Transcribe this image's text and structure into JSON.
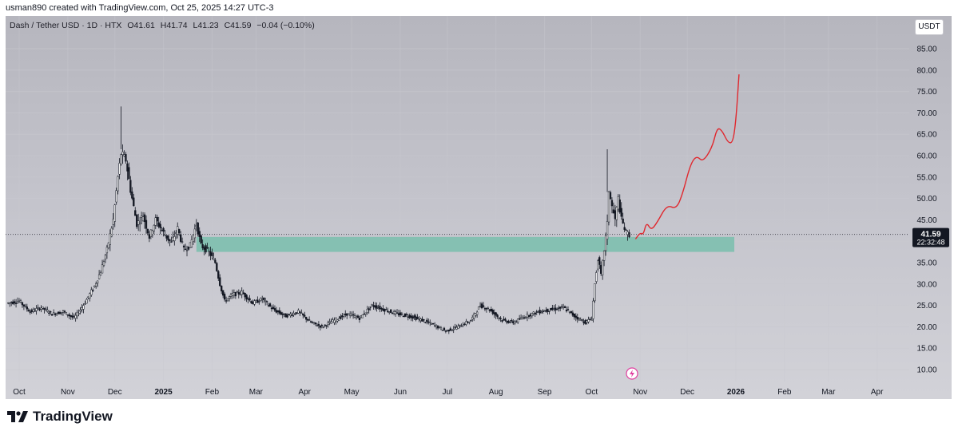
{
  "header": {
    "credit": "usman890 created with TradingView.com, Oct 25, 2025 14:27 UTC-3"
  },
  "symbol_bar": {
    "pair": "Dash / Tether USD · 1D · HTX",
    "open": "O41.61",
    "high": "H41.74",
    "low": "L41.23",
    "close": "C41.59",
    "change": "−0.04 (−0.10%)"
  },
  "currency_button": "USDT",
  "footer": {
    "brand": "TradingView"
  },
  "colors": {
    "zone": "#7fbfb0",
    "projection": "#e0282e",
    "candle": "#131722",
    "price_tag": "#131722"
  },
  "chart_data": {
    "type": "candlestick",
    "title": "Dash / Tether USD · 1D · HTX",
    "xlabel": "",
    "ylabel": "",
    "ylim": [
      5,
      90
    ],
    "grid": true,
    "y_ticks": [
      "10.00",
      "15.00",
      "20.00",
      "25.00",
      "30.00",
      "35.00",
      "40.00",
      "45.00",
      "50.00",
      "55.00",
      "60.00",
      "65.00",
      "70.00",
      "75.00",
      "80.00",
      "85.00"
    ],
    "x_ticks": [
      {
        "label": "Oct",
        "date": "2024-10-01"
      },
      {
        "label": "Nov",
        "date": "2024-11-01"
      },
      {
        "label": "Dec",
        "date": "2024-12-01"
      },
      {
        "label": "2025",
        "date": "2025-01-01",
        "bold": true
      },
      {
        "label": "Feb",
        "date": "2025-02-01"
      },
      {
        "label": "Mar",
        "date": "2025-03-01"
      },
      {
        "label": "Apr",
        "date": "2025-04-01"
      },
      {
        "label": "May",
        "date": "2025-05-01"
      },
      {
        "label": "Jun",
        "date": "2025-06-01"
      },
      {
        "label": "Jul",
        "date": "2025-07-01"
      },
      {
        "label": "Aug",
        "date": "2025-08-01"
      },
      {
        "label": "Sep",
        "date": "2025-09-01"
      },
      {
        "label": "Oct",
        "date": "2025-10-01"
      },
      {
        "label": "Nov",
        "date": "2025-11-01"
      },
      {
        "label": "Dec",
        "date": "2025-12-01"
      },
      {
        "label": "2026",
        "date": "2026-01-01",
        "bold": true
      },
      {
        "label": "Feb",
        "date": "2026-02-01"
      },
      {
        "label": "Mar",
        "date": "2026-03-01"
      },
      {
        "label": "Apr",
        "date": "2026-04-01"
      }
    ],
    "price_path": [
      [
        "2024-09-23",
        25.5
      ],
      [
        "2024-10-01",
        26.0
      ],
      [
        "2024-10-08",
        23.5
      ],
      [
        "2024-10-15",
        24.5
      ],
      [
        "2024-10-22",
        23.0
      ],
      [
        "2024-10-29",
        23.5
      ],
      [
        "2024-11-05",
        22.0
      ],
      [
        "2024-11-10",
        24.5
      ],
      [
        "2024-11-14",
        27.0
      ],
      [
        "2024-11-18",
        29.5
      ],
      [
        "2024-11-22",
        33.0
      ],
      [
        "2024-11-26",
        38.0
      ],
      [
        "2024-11-30",
        45.0
      ],
      [
        "2024-12-03",
        55.0
      ],
      [
        "2024-12-05",
        60.5
      ],
      [
        "2024-12-08",
        59.0
      ],
      [
        "2024-12-11",
        52.0
      ],
      [
        "2024-12-15",
        44.0
      ],
      [
        "2024-12-19",
        46.0
      ],
      [
        "2024-12-23",
        41.0
      ],
      [
        "2024-12-27",
        45.0
      ],
      [
        "2025-01-01",
        42.0
      ],
      [
        "2025-01-06",
        39.5
      ],
      [
        "2025-01-10",
        43.0
      ],
      [
        "2025-01-14",
        38.0
      ],
      [
        "2025-01-18",
        39.0
      ],
      [
        "2025-01-22",
        44.0
      ],
      [
        "2025-01-25",
        39.0
      ],
      [
        "2025-01-30",
        37.5
      ],
      [
        "2025-02-03",
        35.0
      ],
      [
        "2025-02-06",
        30.0
      ],
      [
        "2025-02-09",
        26.0
      ],
      [
        "2025-02-14",
        27.5
      ],
      [
        "2025-02-20",
        28.0
      ],
      [
        "2025-02-27",
        25.5
      ],
      [
        "2025-03-05",
        26.5
      ],
      [
        "2025-03-12",
        24.0
      ],
      [
        "2025-03-20",
        22.5
      ],
      [
        "2025-03-28",
        23.5
      ],
      [
        "2025-04-05",
        21.0
      ],
      [
        "2025-04-12",
        20.0
      ],
      [
        "2025-04-20",
        21.5
      ],
      [
        "2025-04-28",
        23.0
      ],
      [
        "2025-05-06",
        22.0
      ],
      [
        "2025-05-14",
        25.0
      ],
      [
        "2025-05-22",
        24.0
      ],
      [
        "2025-05-30",
        23.0
      ],
      [
        "2025-06-07",
        22.5
      ],
      [
        "2025-06-15",
        21.5
      ],
      [
        "2025-06-22",
        20.5
      ],
      [
        "2025-06-30",
        19.0
      ],
      [
        "2025-07-08",
        20.0
      ],
      [
        "2025-07-16",
        21.5
      ],
      [
        "2025-07-22",
        25.0
      ],
      [
        "2025-07-28",
        24.0
      ],
      [
        "2025-08-05",
        21.5
      ],
      [
        "2025-08-12",
        21.0
      ],
      [
        "2025-08-20",
        22.5
      ],
      [
        "2025-08-28",
        23.5
      ],
      [
        "2025-09-05",
        24.0
      ],
      [
        "2025-09-13",
        24.5
      ],
      [
        "2025-09-20",
        22.5
      ],
      [
        "2025-09-27",
        21.0
      ],
      [
        "2025-10-01",
        22.0
      ],
      [
        "2025-10-03",
        30.0
      ],
      [
        "2025-10-05",
        36.0
      ],
      [
        "2025-10-07",
        32.0
      ],
      [
        "2025-10-09",
        38.0
      ],
      [
        "2025-10-11",
        44.0
      ],
      [
        "2025-10-12",
        52.0
      ],
      [
        "2025-10-14",
        48.0
      ],
      [
        "2025-10-16",
        45.0
      ],
      [
        "2025-10-18",
        50.0
      ],
      [
        "2025-10-20",
        45.0
      ],
      [
        "2025-10-23",
        42.0
      ],
      [
        "2025-10-25",
        41.59
      ]
    ],
    "support_zone": {
      "from": "2025-01-22",
      "to": "2025-12-31",
      "low": 37.5,
      "high": 41.0
    },
    "projection_path": [
      [
        "2025-10-29",
        40.5
      ],
      [
        "2025-11-01",
        42.0
      ],
      [
        "2025-11-03",
        41.5
      ],
      [
        "2025-11-05",
        44.5
      ],
      [
        "2025-11-08",
        42.5
      ],
      [
        "2025-11-12",
        44.5
      ],
      [
        "2025-11-18",
        48.5
      ],
      [
        "2025-11-24",
        47.5
      ],
      [
        "2025-11-28",
        51.0
      ],
      [
        "2025-12-03",
        58.0
      ],
      [
        "2025-12-07",
        60.0
      ],
      [
        "2025-12-11",
        58.5
      ],
      [
        "2025-12-17",
        62.0
      ],
      [
        "2025-12-20",
        66.5
      ],
      [
        "2025-12-23",
        66.0
      ],
      [
        "2025-12-27",
        63.0
      ],
      [
        "2025-12-30",
        63.0
      ],
      [
        "2026-01-01",
        68.0
      ],
      [
        "2026-01-03",
        79.0
      ]
    ],
    "last_price": {
      "value": "41.59",
      "countdown": "22:32:48"
    }
  }
}
